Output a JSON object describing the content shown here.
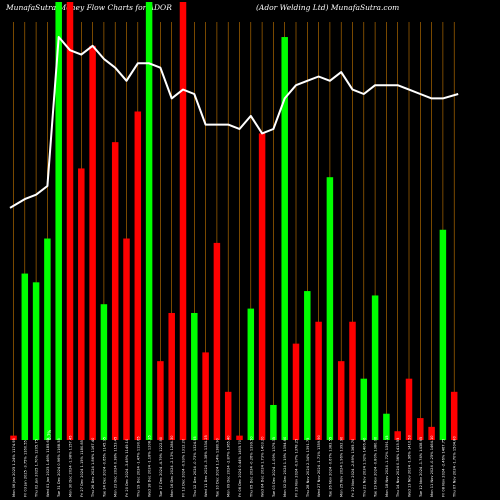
{
  "header": {
    "left": "MunafaSutra  Money Flow  Charts for ADOR",
    "right": "(Ador Welding Ltd) MunafaSutra.com"
  },
  "colors": {
    "background": "#000000",
    "up": "#00ff00",
    "down": "#ff0000",
    "grid": "#c87800",
    "line": "#ffffff",
    "text": "#ffffff"
  },
  "chart_data": {
    "type": "bar",
    "title": "",
    "grid": true,
    "xlabel": "",
    "ylabel": "",
    "note": "0.7%",
    "bars": [
      {
        "label": "Mon 06 Jan 2025 1.24% 1174.95",
        "value": 1,
        "dir": "down"
      },
      {
        "label": "Fri 03 Jan 2025 -3.75% 1160.55",
        "value": 38,
        "dir": "up"
      },
      {
        "label": "Thu 02 Jan 2025 1.70% 1205.75",
        "value": 36,
        "dir": "up"
      },
      {
        "label": "Wed 01 Jan 2025 1.46% 1185.65",
        "value": 46,
        "dir": "up"
      },
      {
        "label": "Tue 31 Dec 2024 0.96% 1168.55",
        "value": 100,
        "dir": "up"
      },
      {
        "label": "Mon 30 Dec 2024 -1.98% 1157.45",
        "value": 100,
        "dir": "down"
      },
      {
        "label": "Fri 27 Dec 2024 1.15% 1180.85",
        "value": 62,
        "dir": "down"
      },
      {
        "label": "Thu 26 Dec 2024 1.86% 1167.40",
        "value": 90,
        "dir": "down"
      },
      {
        "label": "Tue 24 Dec 2024 -0.65% 1145.95",
        "value": 31,
        "dir": "up"
      },
      {
        "label": "Mon 23 Dec 2024 0.38% 1153.45",
        "value": 68,
        "dir": "down"
      },
      {
        "label": "Fri 20 Dec 2024 -3.49% 1149.10",
        "value": 46,
        "dir": "down"
      },
      {
        "label": "Thu 19 Dec 2024 -1.47% 1190.65",
        "value": 75,
        "dir": "down"
      },
      {
        "label": "Wed 18 Dec 2024 -1.18% 1208.35",
        "value": 100,
        "dir": "up"
      },
      {
        "label": "Tue 17 Dec 2024 -4.79% 1222.80",
        "value": 18,
        "dir": "down"
      },
      {
        "label": "Mon 16 Dec 2024 -2.13% 1284.30",
        "value": 29,
        "dir": "down"
      },
      {
        "label": "Fri 13 Dec 2024 -0.93% 1312.20",
        "value": 100,
        "dir": "down"
      },
      {
        "label": "Thu 12 Dec 2024 -0.73% 1324.55",
        "value": 29,
        "dir": "up"
      },
      {
        "label": "Wed 11 Dec 2024 -3.38% 1334.25",
        "value": 20,
        "dir": "down"
      },
      {
        "label": "Tue 10 Dec 2024 1.14% 1380.90",
        "value": 45,
        "dir": "down"
      },
      {
        "label": "Mon 09 Dec 2024 -2.87% 1365.40",
        "value": 11,
        "dir": "down"
      },
      {
        "label": "Fri 06 Dec 2024 0.44% 1405.70",
        "value": 1,
        "dir": "down"
      },
      {
        "label": "Thu 05 Dec 2024 -0.26% 1399.50",
        "value": 30,
        "dir": "up"
      },
      {
        "label": "Wed 04 Dec 2024 1.73% 1403.20",
        "value": 70,
        "dir": "down"
      },
      {
        "label": "Tue 03 Dec 2024 -1.09% 1379.35",
        "value": 8,
        "dir": "up"
      },
      {
        "label": "Mon 02 Dec 2024 1.19% 1394.60",
        "value": 92,
        "dir": "up"
      },
      {
        "label": "Fri 29 Nov 2024 -0.97% 1378.25",
        "value": 22,
        "dir": "down"
      },
      {
        "label": "Thu 28 Nov 2024 2.34% 1391.75",
        "value": 34,
        "dir": "up"
      },
      {
        "label": "Wed 27 Nov 2024 -1.71% 1359.90",
        "value": 27,
        "dir": "down"
      },
      {
        "label": "Tue 26 Nov 2024 -0.67% 1383.55",
        "value": 60,
        "dir": "up"
      },
      {
        "label": "Mon 25 Nov 2024 1.96% 1392.90",
        "value": 18,
        "dir": "down"
      },
      {
        "label": "Fri 22 Nov 2024 -2.89% 1365.70",
        "value": 27,
        "dir": "down"
      },
      {
        "label": "Thu 21 Nov 2024 1.92% 1406.40",
        "value": 14,
        "dir": "up"
      },
      {
        "label": "Tue 19 Nov 2024 -0.80% 1380.00",
        "value": 33,
        "dir": "up"
      },
      {
        "label": "Mon 18 Nov 2024 -1.72% 1391.15",
        "value": 6,
        "dir": "up"
      },
      {
        "label": "Thu 14 Nov 2024 0.36% 1415.55",
        "value": 2,
        "dir": "down"
      },
      {
        "label": "Wed 13 Nov 2024 -1.96% 1410.50",
        "value": 14,
        "dir": "down"
      },
      {
        "label": "Tue 12 Nov 2024 -1.74% 1438.65",
        "value": 5,
        "dir": "down"
      },
      {
        "label": "Mon 11 Nov 2024 -0.25% 1464.10",
        "value": 3,
        "dir": "down"
      },
      {
        "label": "Fri 08 Nov 2024 -2.46% 1467.75",
        "value": 48,
        "dir": "up"
      },
      {
        "label": "Thu 07 Nov 2024 -1.70% 1504.80",
        "value": 11,
        "dir": "down"
      }
    ],
    "price_line": [
      53,
      55,
      56,
      58,
      100,
      100,
      100,
      100,
      100,
      100,
      100,
      100,
      100,
      100,
      100,
      92,
      93,
      92,
      86,
      86,
      85,
      85,
      86,
      84,
      85,
      90,
      91,
      92,
      91,
      92,
      88,
      87,
      89,
      89,
      88,
      87,
      86,
      86,
      86,
      86
    ],
    "line_values": [
      53,
      55,
      56,
      58,
      92,
      89,
      88,
      90,
      87,
      85,
      82,
      86,
      86,
      85,
      78,
      80,
      79,
      72,
      72,
      72,
      71,
      74,
      70,
      71,
      78,
      81,
      82,
      83,
      82,
      84,
      80,
      79,
      81,
      81,
      81,
      80,
      79,
      78,
      78,
      79
    ]
  }
}
